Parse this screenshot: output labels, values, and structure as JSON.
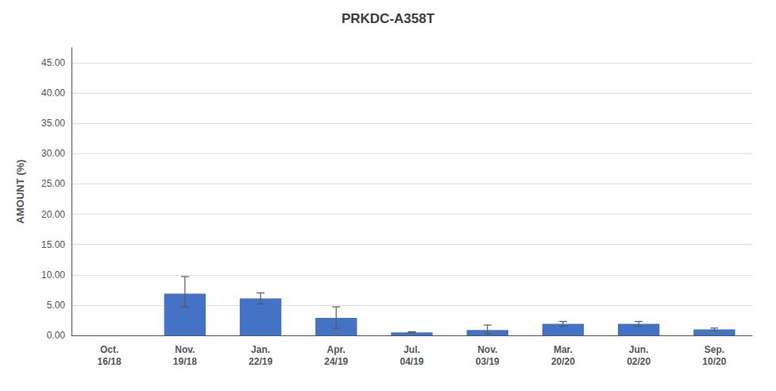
{
  "chart_data": {
    "type": "bar",
    "title": "PRKDC-A358T",
    "ylabel": "AMOUNT (%)",
    "categories": [
      "Oct.\n16/18",
      "Nov.\n19/18",
      "Jan.\n22/19",
      "Apr.\n24/19",
      "Jul.\n04/19",
      "Nov.\n03/19",
      "Mar.\n20/20",
      "Jun.\n02/20",
      "Sep.\n10/20"
    ],
    "values": [
      0.0,
      6.9,
      6.1,
      2.9,
      0.5,
      0.9,
      1.9,
      1.9,
      1.0
    ],
    "err_upper": [
      0.0,
      2.8,
      0.9,
      1.8,
      0.1,
      0.8,
      0.4,
      0.4,
      0.2
    ],
    "err_lower": [
      0.0,
      2.2,
      0.9,
      1.7,
      0.1,
      0.6,
      0.4,
      0.4,
      0.2
    ],
    "color": "#4472C4",
    "ylim": [
      0,
      47.5
    ],
    "yticks": [
      {
        "value": 0.0,
        "label": "0.00"
      },
      {
        "value": 5.0,
        "label": "5.00"
      },
      {
        "value": 10.0,
        "label": "10.00"
      },
      {
        "value": 15.0,
        "label": "15.00"
      },
      {
        "value": 20.0,
        "label": "20.00"
      },
      {
        "value": 25.0,
        "label": "25.00"
      },
      {
        "value": 30.0,
        "label": "30.00"
      },
      {
        "value": 35.0,
        "label": "35.00"
      },
      {
        "value": 40.0,
        "label": "40.00"
      },
      {
        "value": 45.0,
        "label": "45.00"
      }
    ],
    "grid": true
  }
}
